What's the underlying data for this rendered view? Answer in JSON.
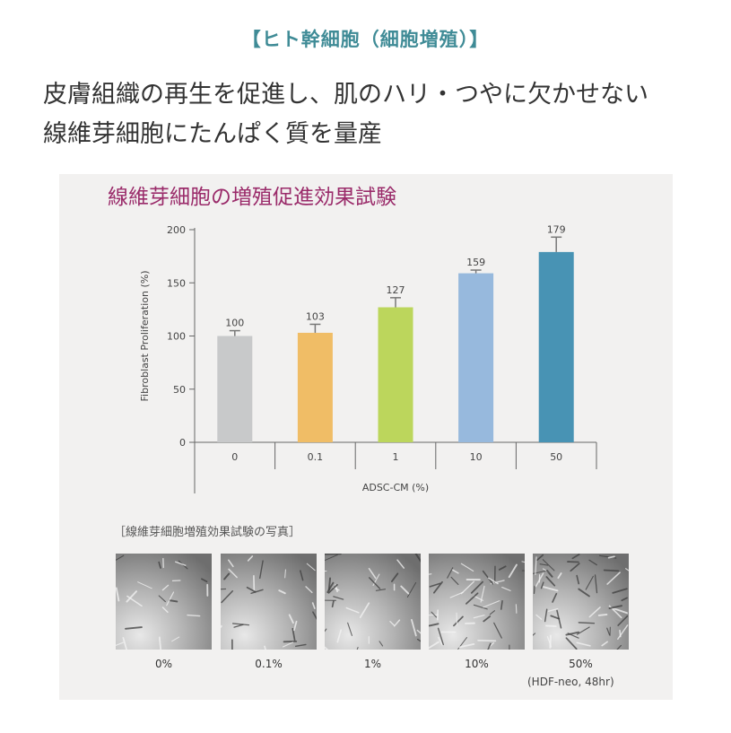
{
  "heading": "【ヒト幹細胞（細胞増殖）】",
  "lead": {
    "line1": "皮膚組織の再生を促進し、肌のハリ・つやに欠かせない",
    "line2": "線維芽細胞にたんぱく質を量産"
  },
  "chart_data": {
    "type": "bar",
    "title": "線維芽細胞の増殖促進効果試験",
    "xlabel": "ADSC-CM (%)",
    "ylabel": "Fibroblast Proliferation (%)",
    "categories": [
      "0",
      "0.1",
      "1",
      "10",
      "50"
    ],
    "values": [
      100,
      103,
      127,
      159,
      179
    ],
    "errors": [
      5,
      8,
      9,
      3,
      14
    ],
    "data_labels": [
      "100",
      "103",
      "127",
      "159",
      "179"
    ],
    "yticks": [
      "0",
      "50",
      "100",
      "150",
      "200"
    ],
    "ylim": [
      0,
      200
    ],
    "grid": false,
    "colors": [
      "#c8c9ca",
      "#f0bd66",
      "#bcd65c",
      "#97b9dd",
      "#4893b4"
    ]
  },
  "photos": {
    "caption": "［線維芽細胞増殖効果試験の写真］",
    "items": [
      {
        "label": "0%",
        "density": 0.25
      },
      {
        "label": "0.1%",
        "density": 0.35
      },
      {
        "label": "1%",
        "density": 0.5
      },
      {
        "label": "10%",
        "density": 0.8
      },
      {
        "label": "50%",
        "density": 1.0
      }
    ],
    "note": "(HDF-neo, 48hr)"
  }
}
